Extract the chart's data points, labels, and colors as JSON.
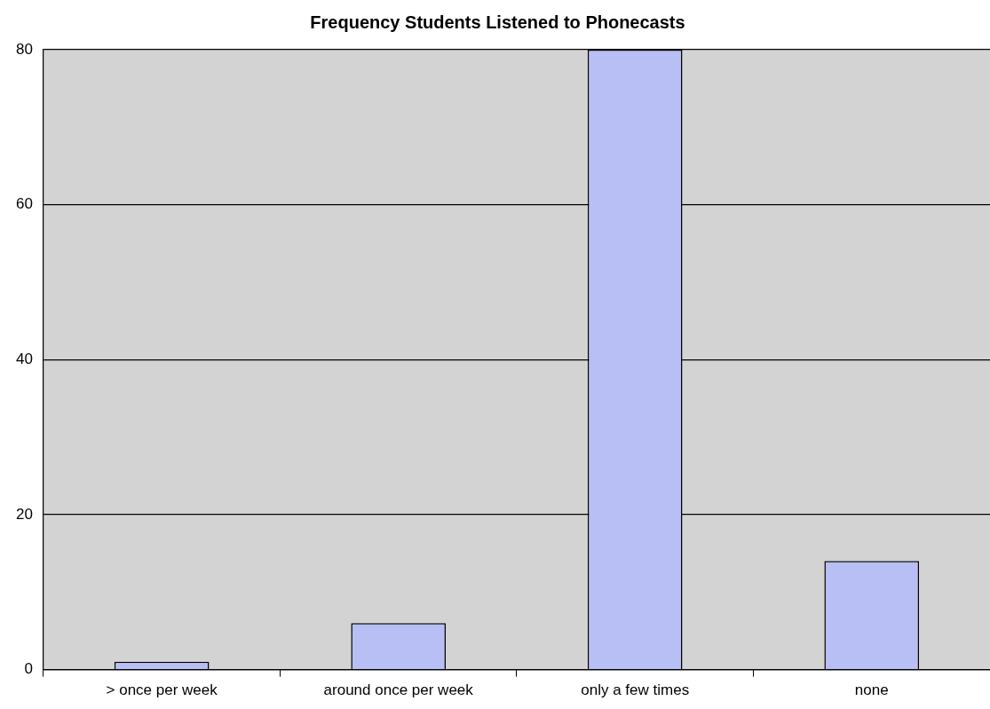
{
  "chart_data": {
    "type": "bar",
    "title": "Frequency Students Listened to Phonecasts",
    "categories": [
      "> once per week",
      "around once per week",
      "only a few times",
      "none"
    ],
    "values": [
      1,
      6,
      80,
      14
    ],
    "color": "#b8bff5",
    "ylim": [
      0,
      80
    ],
    "yticks": [
      0,
      20,
      40,
      60,
      80
    ],
    "grid": "y",
    "legend": false
  }
}
